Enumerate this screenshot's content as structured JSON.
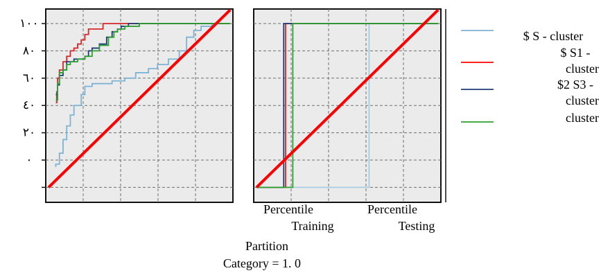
{
  "chart_data": [
    {
      "type": "line",
      "panel": "left",
      "ylim": [
        -20,
        110
      ],
      "xlim": [
        0,
        1
      ],
      "yticks": [
        0,
        20,
        40,
        60,
        80,
        100
      ],
      "ytick_labels": [
        "٠",
        "٢٠",
        "٤٠",
        "٦٠",
        "٨٠",
        "١٠٠"
      ],
      "grid": true,
      "series": [
        {
          "name": "$ S - cluster",
          "color": "#7fb3d5",
          "points": [
            [
              0.04,
              -5
            ],
            [
              0.04,
              -3
            ],
            [
              0.06,
              5
            ],
            [
              0.08,
              15
            ],
            [
              0.1,
              25
            ],
            [
              0.12,
              33
            ],
            [
              0.14,
              40
            ],
            [
              0.16,
              40
            ],
            [
              0.18,
              48
            ],
            [
              0.2,
              54
            ],
            [
              0.24,
              56
            ],
            [
              0.3,
              56
            ],
            [
              0.35,
              58
            ],
            [
              0.42,
              60
            ],
            [
              0.48,
              64
            ],
            [
              0.55,
              67
            ],
            [
              0.6,
              70
            ],
            [
              0.66,
              74
            ],
            [
              0.72,
              80
            ],
            [
              0.76,
              90
            ],
            [
              0.8,
              95
            ],
            [
              0.84,
              98
            ],
            [
              0.9,
              100
            ],
            [
              0.96,
              100
            ],
            [
              0.98,
              100
            ],
            [
              1.0,
              100
            ]
          ]
        },
        {
          "name": "$ S1 - cluster",
          "color": "#d62728",
          "points": [
            [
              0.04,
              42
            ],
            [
              0.045,
              50
            ],
            [
              0.05,
              60
            ],
            [
              0.06,
              66
            ],
            [
              0.08,
              72
            ],
            [
              0.1,
              76
            ],
            [
              0.12,
              80
            ],
            [
              0.14,
              82
            ],
            [
              0.16,
              85
            ],
            [
              0.18,
              88
            ],
            [
              0.2,
              92
            ],
            [
              0.22,
              96
            ],
            [
              0.24,
              96
            ],
            [
              0.3,
              100
            ],
            [
              0.6,
              100
            ],
            [
              0.8,
              100
            ],
            [
              1.0,
              100
            ]
          ]
        },
        {
          "name": "$2 S3 - cluster",
          "color": "#1f3b7a",
          "points": [
            [
              0.04,
              48
            ],
            [
              0.05,
              55
            ],
            [
              0.06,
              62
            ],
            [
              0.08,
              66
            ],
            [
              0.1,
              72
            ],
            [
              0.12,
              72
            ],
            [
              0.14,
              74
            ],
            [
              0.18,
              74
            ],
            [
              0.2,
              76
            ],
            [
              0.22,
              80
            ],
            [
              0.24,
              82
            ],
            [
              0.28,
              85
            ],
            [
              0.32,
              90
            ],
            [
              0.35,
              94
            ],
            [
              0.38,
              96
            ],
            [
              0.4,
              98
            ],
            [
              0.44,
              100
            ],
            [
              0.6,
              100
            ],
            [
              0.8,
              100
            ],
            [
              0.96,
              100
            ],
            [
              1.0,
              100
            ]
          ]
        },
        {
          "name": "",
          "color": "#2ca02c",
          "points": [
            [
              0.04,
              44
            ],
            [
              0.05,
              56
            ],
            [
              0.06,
              64
            ],
            [
              0.08,
              66
            ],
            [
              0.1,
              70
            ],
            [
              0.12,
              72
            ],
            [
              0.16,
              74
            ],
            [
              0.2,
              76
            ],
            [
              0.24,
              80
            ],
            [
              0.28,
              84
            ],
            [
              0.33,
              90
            ],
            [
              0.36,
              94
            ],
            [
              0.38,
              96
            ],
            [
              0.42,
              98
            ],
            [
              0.5,
              100
            ],
            [
              0.7,
              100
            ],
            [
              0.85,
              100
            ],
            [
              0.95,
              100
            ],
            [
              1.0,
              100
            ]
          ]
        },
        {
          "name": "",
          "color": "#ff0000",
          "points": [
            [
              0,
              -20
            ],
            [
              1,
              110
            ]
          ]
        }
      ]
    },
    {
      "type": "line",
      "panel": "right",
      "xlabel": "Partition",
      "xtick_labels": [
        {
          "line1": "Percentile",
          "line2": "Training"
        },
        {
          "line1": "Percentile",
          "line2": "Testing"
        }
      ],
      "ylim": [
        -20,
        110
      ],
      "xlim": [
        0,
        1
      ],
      "grid": true,
      "series": [
        {
          "name": "$ S - cluster",
          "color": "#a9cce3",
          "points": [
            [
              0,
              -20
            ],
            [
              0.12,
              -20
            ],
            [
              0.2,
              -20
            ],
            [
              0.45,
              -20
            ],
            [
              0.62,
              -20
            ],
            [
              0.62,
              100
            ],
            [
              1.0,
              100
            ]
          ]
        },
        {
          "name": "$ S1 - cluster",
          "color": "#d62728",
          "points": [
            [
              0,
              -20
            ],
            [
              0.14,
              -20
            ],
            [
              0.16,
              100
            ],
            [
              1.0,
              100
            ]
          ]
        },
        {
          "name": "$2 S3 - cluster",
          "color": "#1f3b7a",
          "points": [
            [
              0,
              -20
            ],
            [
              0.13,
              -20
            ],
            [
              0.15,
              100
            ],
            [
              1.0,
              100
            ]
          ]
        },
        {
          "name": "",
          "color": "#2ca02c",
          "points": [
            [
              0,
              -20
            ],
            [
              0.18,
              -20
            ],
            [
              0.2,
              100
            ],
            [
              1.0,
              100
            ]
          ]
        },
        {
          "name": "",
          "color": "#ff0000",
          "points": [
            [
              0,
              -20
            ],
            [
              1,
              110
            ]
          ]
        }
      ]
    }
  ],
  "category_label": "Category = 1. 0",
  "legend": {
    "placement": "right",
    "entries": [
      {
        "text_lines": [
          "$ S - cluster"
        ],
        "color": "#7fb3d5"
      },
      {
        "text_lines": [
          "$ S1 -",
          "cluster"
        ],
        "color": "#ff0000"
      },
      {
        "text_lines": [
          "$2 S3 -",
          "cluster"
        ],
        "color": "#1f3b7a"
      },
      {
        "text_lines": [],
        "color": "#2ca02c"
      }
    ]
  }
}
